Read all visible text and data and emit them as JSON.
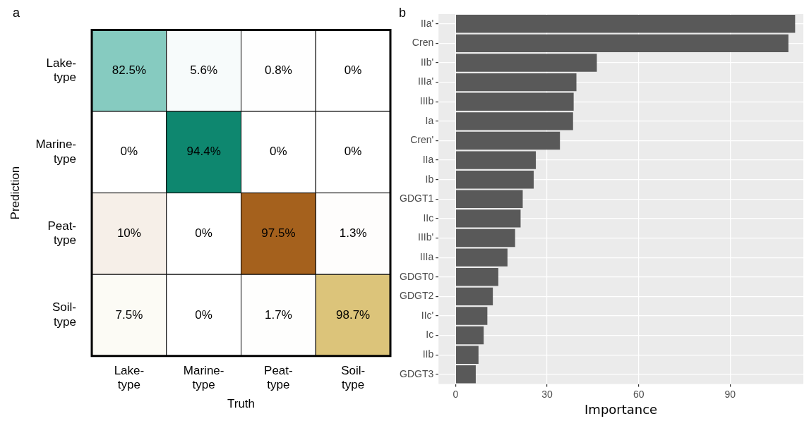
{
  "chart_data": [
    {
      "type": "heatmap",
      "annotations": [
        "a"
      ],
      "xlabel": "Truth",
      "ylabel": "Prediction",
      "categories": [
        "Lake-type",
        "Marine-type",
        "Peat-type",
        "Soil-type"
      ],
      "y_categories": [
        "Lake-type",
        "Marine-type",
        "Peat-type",
        "Soil-type"
      ],
      "cells": [
        [
          82.5,
          5.6,
          0.8,
          0
        ],
        [
          0,
          94.4,
          0,
          0
        ],
        [
          10,
          0,
          97.5,
          1.3
        ],
        [
          7.5,
          0,
          1.7,
          98.7
        ]
      ],
      "cell_labels": [
        [
          "82.5%",
          "5.6%",
          "0.8%",
          "0%"
        ],
        [
          "0%",
          "94.4%",
          "0%",
          "0%"
        ],
        [
          "10%",
          "0%",
          "97.5%",
          "1.3%"
        ],
        [
          "7.5%",
          "0%",
          "1.7%",
          "98.7%"
        ]
      ],
      "colors": [
        "#6cc0b3",
        "#008066",
        "#a35d17",
        "#dcc378"
      ]
    },
    {
      "type": "bar",
      "orientation": "horizontal",
      "annotations": [
        "b"
      ],
      "xlabel": "Importance",
      "grid": true,
      "color": "#595959",
      "categories": [
        "IIa'",
        "Cren",
        "IIb'",
        "IIIa'",
        "IIIb",
        "Ia",
        "Cren'",
        "IIa",
        "Ib",
        "GDGT1",
        "IIc",
        "IIIb'",
        "IIIa",
        "GDGT0",
        "GDGT2",
        "IIc'",
        "Ic",
        "IIb",
        "GDGT3"
      ],
      "values": [
        111.3,
        109.1,
        46.3,
        39.6,
        38.7,
        38.5,
        34.2,
        26.3,
        25.6,
        22.0,
        21.3,
        19.5,
        17.0,
        14.0,
        12.2,
        10.4,
        9.2,
        7.5,
        6.6
      ],
      "xlim": [
        -5.6,
        114
      ],
      "xticks": [
        0,
        30,
        60,
        90
      ]
    }
  ]
}
